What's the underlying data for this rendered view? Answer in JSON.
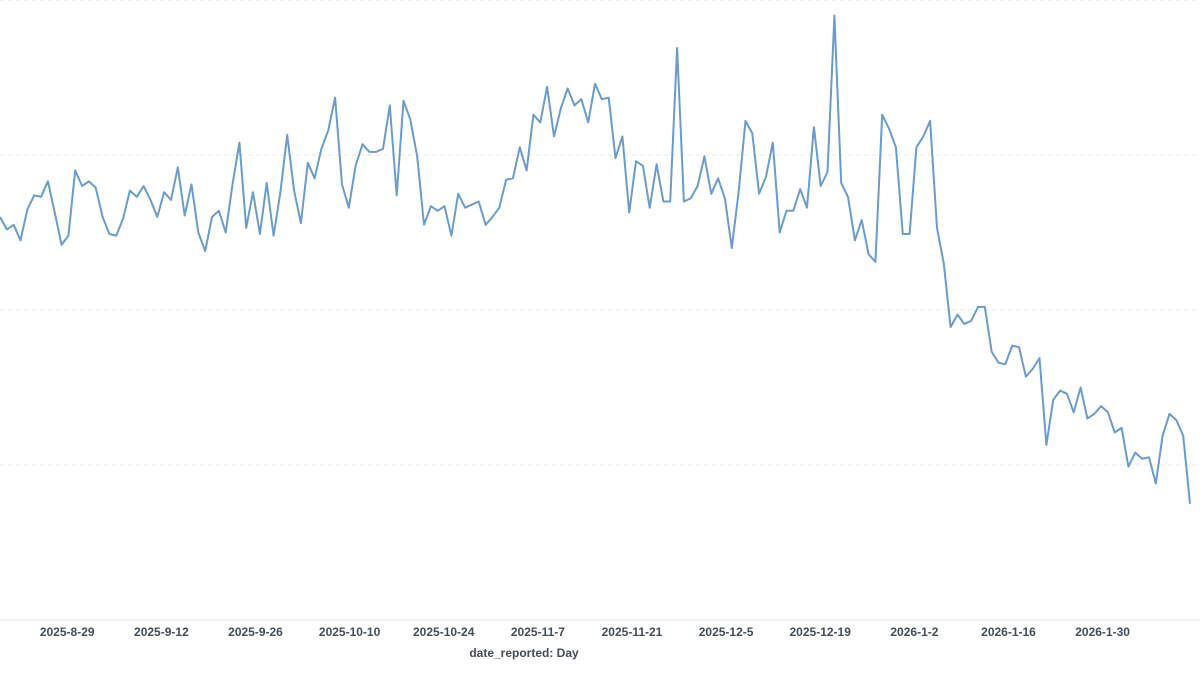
{
  "chart_data": {
    "type": "line",
    "xlabel": "date_reported: Day",
    "ylabel": "",
    "x_tick_labels": [
      "2025-8-29",
      "2025-9-12",
      "2025-9-26",
      "2025-10-10",
      "2025-10-24",
      "2025-11-7",
      "2025-11-21",
      "2025-12-5",
      "2025-12-19",
      "2026-1-2",
      "2026-1-16",
      "2026-1-30"
    ],
    "grid": true,
    "y_axis_visible": false,
    "ylim": [
      0,
      4
    ],
    "series": [
      {
        "color": "#6c9bc9",
        "start_date": "2025-08-19",
        "end_date": "2026-02-12",
        "values": [
          2.6,
          2.52,
          2.55,
          2.45,
          2.65,
          2.74,
          2.73,
          2.83,
          2.63,
          2.42,
          2.48,
          2.9,
          2.8,
          2.83,
          2.79,
          2.6,
          2.49,
          2.48,
          2.59,
          2.77,
          2.73,
          2.8,
          2.71,
          2.6,
          2.76,
          2.71,
          2.92,
          2.61,
          2.81,
          2.5,
          2.38,
          2.6,
          2.64,
          2.5,
          2.81,
          3.08,
          2.53,
          2.76,
          2.49,
          2.82,
          2.48,
          2.76,
          3.13,
          2.77,
          2.56,
          2.95,
          2.85,
          3.04,
          3.16,
          3.37,
          2.81,
          2.66,
          2.93,
          3.07,
          3.02,
          3.02,
          3.04,
          3.32,
          2.74,
          3.35,
          3.23,
          2.99,
          2.55,
          2.67,
          2.64,
          2.67,
          2.48,
          2.75,
          2.66,
          2.68,
          2.7,
          2.55,
          2.6,
          2.66,
          2.84,
          2.85,
          3.05,
          2.9,
          3.26,
          3.21,
          3.44,
          3.12,
          3.3,
          3.43,
          3.32,
          3.36,
          3.21,
          3.46,
          3.36,
          3.37,
          2.98,
          3.12,
          2.63,
          2.96,
          2.93,
          2.66,
          2.94,
          2.7,
          2.7,
          3.69,
          2.7,
          2.72,
          2.8,
          2.99,
          2.75,
          2.85,
          2.72,
          2.4,
          2.76,
          3.22,
          3.14,
          2.75,
          2.86,
          3.08,
          2.5,
          2.64,
          2.64,
          2.78,
          2.66,
          3.18,
          2.8,
          2.89,
          3.9,
          2.82,
          2.73,
          2.45,
          2.58,
          2.36,
          2.31,
          3.26,
          3.17,
          3.05,
          2.49,
          2.49,
          3.05,
          3.12,
          3.22,
          2.53,
          2.3,
          1.89,
          1.97,
          1.91,
          1.93,
          2.02,
          2.02,
          1.73,
          1.66,
          1.65,
          1.77,
          1.76,
          1.57,
          1.62,
          1.69,
          1.13,
          1.42,
          1.48,
          1.46,
          1.34,
          1.5,
          1.3,
          1.33,
          1.38,
          1.34,
          1.21,
          1.24,
          0.99,
          1.08,
          1.04,
          1.05,
          0.88,
          1.19,
          1.33,
          1.29,
          1.19,
          0.75
        ]
      }
    ]
  }
}
